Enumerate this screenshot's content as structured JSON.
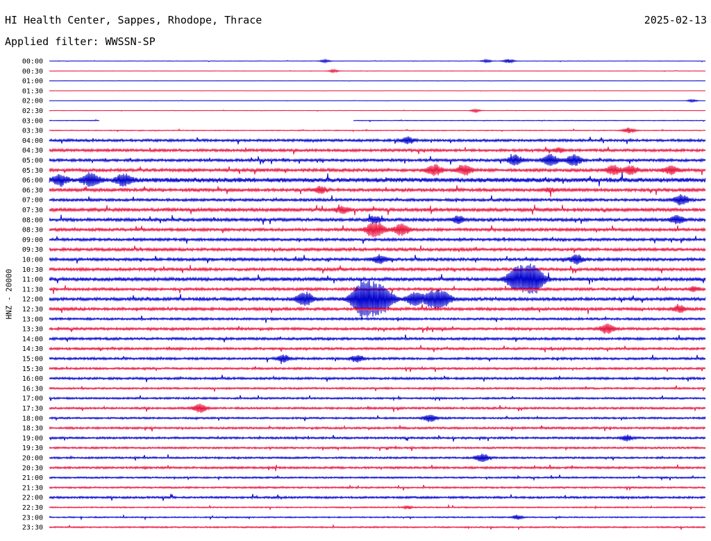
{
  "header": {
    "station_title": "HI Health Center, Sappes, Rhodope, Thrace",
    "date": "2025-02-13",
    "filter_text": "Applied filter: WWSSN-SP"
  },
  "chart_data": {
    "type": "line",
    "title": "HI Health Center, Sappes, Rhodope, Thrace",
    "ylabel": "HNZ - 20000",
    "xlabel": "",
    "colors": {
      "even_rows": "#0000cc",
      "odd_rows": "#e8123c"
    },
    "grid": false,
    "categories": [
      "00:00",
      "00:30",
      "01:00",
      "01:30",
      "02:00",
      "02:30",
      "03:00",
      "03:30",
      "04:00",
      "04:30",
      "05:00",
      "05:30",
      "06:00",
      "06:30",
      "07:00",
      "07:30",
      "08:00",
      "08:30",
      "09:00",
      "09:30",
      "10:00",
      "10:30",
      "11:00",
      "11:30",
      "12:00",
      "12:30",
      "13:00",
      "13:30",
      "14:00",
      "14:30",
      "15:00",
      "15:30",
      "16:00",
      "16:30",
      "17:00",
      "17:30",
      "18:00",
      "18:30",
      "19:00",
      "19:30",
      "20:00",
      "20:30",
      "21:00",
      "21:30",
      "22:00",
      "22:30",
      "23:00",
      "23:30"
    ],
    "noise_level": [
      0.2,
      0.2,
      0.1,
      0.1,
      0.1,
      0.2,
      0.3,
      0.4,
      1.2,
      1.3,
      1.3,
      1.5,
      2.2,
      1.5,
      1.3,
      1.6,
      1.5,
      1.4,
      1.3,
      1.4,
      1.4,
      1.4,
      1.6,
      1.3,
      1.5,
      1.4,
      1.1,
      1.2,
      1.2,
      1.1,
      1.1,
      1.0,
      1.1,
      0.9,
      0.9,
      1.0,
      0.9,
      1.0,
      1.0,
      0.9,
      0.9,
      1.0,
      0.8,
      0.8,
      1.0,
      0.6,
      0.6,
      0.7
    ],
    "data_gaps": [
      {
        "category": "03:00",
        "from_minute": 2.3,
        "to_minute": 13.9
      }
    ],
    "events": [
      {
        "category": "00:00",
        "minute": 12.6,
        "amplitude": 2
      },
      {
        "category": "00:00",
        "minute": 20.0,
        "amplitude": 2
      },
      {
        "category": "00:00",
        "minute": 21.0,
        "amplitude": 3
      },
      {
        "category": "00:30",
        "minute": 13.0,
        "amplitude": 2
      },
      {
        "category": "02:00",
        "minute": 29.4,
        "amplitude": 2
      },
      {
        "category": "02:30",
        "minute": 19.5,
        "amplitude": 2
      },
      {
        "category": "03:30",
        "minute": 26.5,
        "amplitude": 4
      },
      {
        "category": "04:00",
        "minute": 16.4,
        "amplitude": 5
      },
      {
        "category": "04:30",
        "minute": 23.3,
        "amplitude": 3
      },
      {
        "category": "05:00",
        "minute": 21.3,
        "amplitude": 7
      },
      {
        "category": "05:00",
        "minute": 22.9,
        "amplitude": 8
      },
      {
        "category": "05:00",
        "minute": 24.0,
        "amplitude": 8
      },
      {
        "category": "05:30",
        "minute": 17.6,
        "amplitude": 8
      },
      {
        "category": "05:30",
        "minute": 19.0,
        "amplitude": 7
      },
      {
        "category": "05:30",
        "minute": 25.8,
        "amplitude": 7
      },
      {
        "category": "05:30",
        "minute": 26.6,
        "amplitude": 6
      },
      {
        "category": "05:30",
        "minute": 28.4,
        "amplitude": 6
      },
      {
        "category": "06:00",
        "minute": 0.5,
        "amplitude": 7
      },
      {
        "category": "06:00",
        "minute": 1.9,
        "amplitude": 9
      },
      {
        "category": "06:00",
        "minute": 3.4,
        "amplitude": 8
      },
      {
        "category": "06:30",
        "minute": 12.4,
        "amplitude": 5
      },
      {
        "category": "06:30",
        "minute": 22.9,
        "amplitude": 3
      },
      {
        "category": "07:00",
        "minute": 28.9,
        "amplitude": 7
      },
      {
        "category": "07:30",
        "minute": 13.4,
        "amplitude": 5
      },
      {
        "category": "08:00",
        "minute": 14.9,
        "amplitude": 5
      },
      {
        "category": "08:00",
        "minute": 18.7,
        "amplitude": 5
      },
      {
        "category": "08:00",
        "minute": 28.7,
        "amplitude": 6
      },
      {
        "category": "08:30",
        "minute": 14.9,
        "amplitude": 11
      },
      {
        "category": "08:30",
        "minute": 16.1,
        "amplitude": 8
      },
      {
        "category": "10:00",
        "minute": 15.1,
        "amplitude": 6
      },
      {
        "category": "10:00",
        "minute": 24.1,
        "amplitude": 6
      },
      {
        "category": "11:00",
        "minute": 21.2,
        "amplitude": 8
      },
      {
        "category": "11:00",
        "minute": 21.8,
        "amplitude": 20
      },
      {
        "category": "11:00",
        "minute": 22.3,
        "amplitude": 9
      },
      {
        "category": "11:30",
        "minute": 29.5,
        "amplitude": 3
      },
      {
        "category": "12:00",
        "minute": 11.7,
        "amplitude": 10
      },
      {
        "category": "12:00",
        "minute": 14.2,
        "amplitude": 11
      },
      {
        "category": "12:00",
        "minute": 14.6,
        "amplitude": 22
      },
      {
        "category": "12:00",
        "minute": 15.3,
        "amplitude": 14
      },
      {
        "category": "12:00",
        "minute": 16.7,
        "amplitude": 9
      },
      {
        "category": "12:00",
        "minute": 17.5,
        "amplitude": 10
      },
      {
        "category": "12:00",
        "minute": 18.0,
        "amplitude": 10
      },
      {
        "category": "12:30",
        "minute": 28.8,
        "amplitude": 5
      },
      {
        "category": "13:30",
        "minute": 25.5,
        "amplitude": 7
      },
      {
        "category": "15:00",
        "minute": 10.7,
        "amplitude": 5
      },
      {
        "category": "15:00",
        "minute": 14.1,
        "amplitude": 5
      },
      {
        "category": "17:30",
        "minute": 6.9,
        "amplitude": 6
      },
      {
        "category": "18:00",
        "minute": 17.4,
        "amplitude": 5
      },
      {
        "category": "19:00",
        "minute": 26.4,
        "amplitude": 4
      },
      {
        "category": "20:00",
        "minute": 19.8,
        "amplitude": 6
      },
      {
        "category": "22:30",
        "minute": 16.4,
        "amplitude": 2
      },
      {
        "category": "23:00",
        "minute": 21.4,
        "amplitude": 3
      }
    ]
  }
}
